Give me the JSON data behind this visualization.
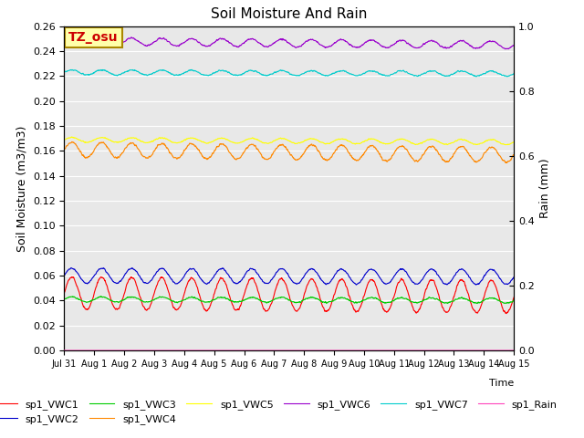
{
  "title": "Soil Moisture And Rain",
  "ylabel_left": "Soil Moisture (m3/m3)",
  "ylabel_right": "Rain (mm)",
  "ylim_left": [
    0.0,
    0.26
  ],
  "ylim_right": [
    0.0,
    1.0
  ],
  "yticks_left": [
    0.0,
    0.02,
    0.04,
    0.06,
    0.08,
    0.1,
    0.12,
    0.14,
    0.16,
    0.18,
    0.2,
    0.22,
    0.24,
    0.26
  ],
  "yticks_right": [
    0.0,
    0.2,
    0.4,
    0.6,
    0.8,
    1.0
  ],
  "n_points": 2160,
  "days": 15,
  "xtick_labels": [
    "Jul 31",
    "Aug 1",
    "Aug 2",
    "Aug 3",
    "Aug 4",
    "Aug 5",
    "Aug 6",
    "Aug 7",
    "Aug 8",
    "Aug 9",
    "Aug 10",
    "Aug 11",
    "Aug 12",
    "Aug 13",
    "Aug 14",
    "Aug 15"
  ],
  "series": {
    "sp1_VWC1": {
      "color": "#ff0000",
      "base": 0.046,
      "amp": 0.013,
      "freq_mult": 1.0,
      "noise": 0.0008,
      "trend": -0.003
    },
    "sp1_VWC2": {
      "color": "#0000cc",
      "base": 0.06,
      "amp": 0.006,
      "freq_mult": 1.0,
      "noise": 0.0005,
      "trend": -0.001
    },
    "sp1_VWC3": {
      "color": "#00cc00",
      "base": 0.041,
      "amp": 0.002,
      "freq_mult": 1.0,
      "noise": 0.0005,
      "trend": -0.001
    },
    "sp1_VWC4": {
      "color": "#ff8800",
      "base": 0.161,
      "amp": 0.006,
      "freq_mult": 1.0,
      "noise": 0.0008,
      "trend": -0.004
    },
    "sp1_VWC5": {
      "color": "#ffff00",
      "base": 0.169,
      "amp": 0.002,
      "freq_mult": 1.0,
      "noise": 0.0004,
      "trend": -0.002
    },
    "sp1_VWC6": {
      "color": "#9900cc",
      "base": 0.248,
      "amp": 0.003,
      "freq_mult": 1.0,
      "noise": 0.0006,
      "trend": -0.003
    },
    "sp1_VWC7": {
      "color": "#00cccc",
      "base": 0.223,
      "amp": 0.002,
      "freq_mult": 1.0,
      "noise": 0.0005,
      "trend": -0.001
    },
    "sp1_Rain": {
      "color": "#ff44bb",
      "base": 0.0,
      "amp": 0.0,
      "freq_mult": 0.0,
      "noise": 0.0,
      "trend": 0.0
    }
  },
  "legend_order": [
    "sp1_VWC1",
    "sp1_VWC2",
    "sp1_VWC3",
    "sp1_VWC4",
    "sp1_VWC5",
    "sp1_VWC6",
    "sp1_VWC7",
    "sp1_Rain"
  ],
  "annotation_text": "TZ_osu",
  "annotation_color": "#cc0000",
  "annotation_bg": "#ffffaa",
  "annotation_edge": "#aa8800",
  "bg_color": "#e8e8e8",
  "linewidth": 0.8,
  "title_fontsize": 11,
  "label_fontsize": 9,
  "tick_fontsize": 8,
  "legend_fontsize": 8
}
